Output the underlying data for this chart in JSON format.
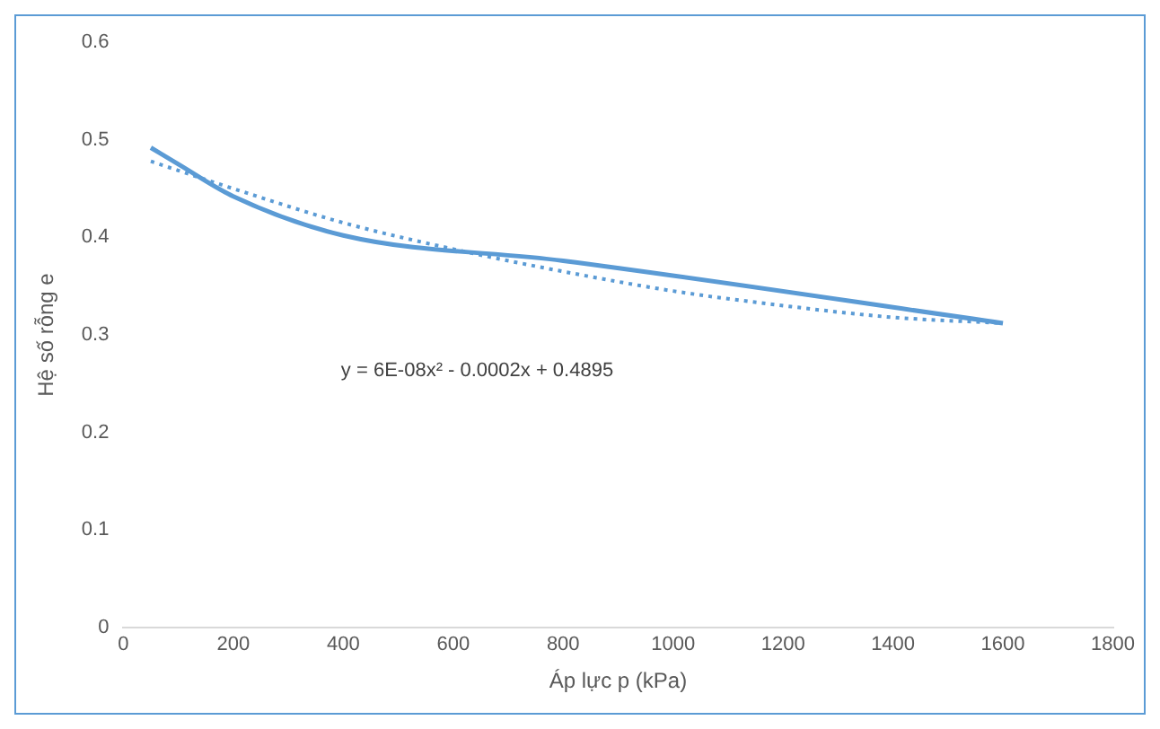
{
  "chart_data": {
    "type": "line",
    "xlabel": "Áp lực p (kPa)",
    "ylabel": "Hệ số rỗng e",
    "xlim": [
      0,
      1800
    ],
    "xticks": [
      0,
      200,
      400,
      600,
      800,
      1000,
      1200,
      1400,
      1600,
      1800
    ],
    "ylim": [
      0,
      0.6
    ],
    "yticks": [
      0,
      0.1,
      0.2,
      0.3,
      0.4,
      0.5,
      0.6
    ],
    "grid": false,
    "legend": false,
    "marker": "none",
    "series": [
      {
        "color": "#5b9bd5",
        "line_style": "solid",
        "x": [
          50,
          100,
          200,
          400,
          800,
          1600
        ],
        "values": [
          0.492,
          0.475,
          0.442,
          0.402,
          0.376,
          0.312
        ]
      },
      {
        "color": "#5b9bd5",
        "line_style": "dotted",
        "x": [
          50,
          200,
          400,
          600,
          800,
          1000,
          1200,
          1400,
          1600
        ],
        "values": [
          0.478,
          0.45,
          0.415,
          0.388,
          0.365,
          0.345,
          0.33,
          0.318,
          0.312
        ]
      }
    ],
    "annotations": [
      "y = 6E-08x² - 0.0002x + 0.4895"
    ]
  }
}
